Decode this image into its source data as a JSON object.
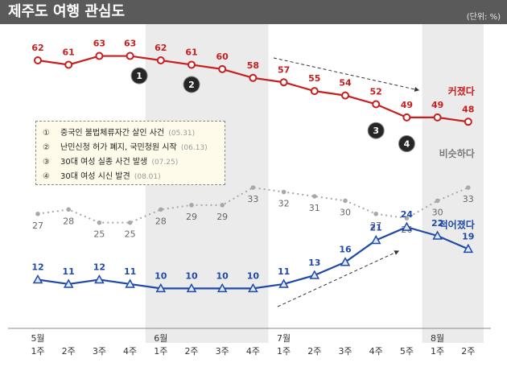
{
  "header": {
    "title": "제주도 여행 관심도",
    "unit": "(단위: %)"
  },
  "colors": {
    "red": "#c81e1e",
    "gray": "#a8a8a8",
    "blue": "#1f4aa8",
    "shade": "#ebebeb",
    "badge": "#262626"
  },
  "events": [
    {
      "num": "①",
      "text": "중국인 불법체류자간 살인 사건",
      "date": "(05.31)"
    },
    {
      "num": "②",
      "text": "난민신청 허가 폐지, 국민청원 시작",
      "date": "(06.13)"
    },
    {
      "num": "③",
      "text": "30대 여성 실종 사건 발생",
      "date": "(07.25)"
    },
    {
      "num": "④",
      "text": "30대 여성 시신 발견",
      "date": "(08.01)"
    }
  ],
  "chart_data": {
    "type": "line",
    "categories": [
      "5월 1주",
      "5월 2주",
      "5월 3주",
      "5월 4주",
      "6월 1주",
      "6월 2주",
      "6월 3주",
      "6월 4주",
      "7월 1주",
      "7월 2주",
      "7월 3주",
      "7월 4주",
      "7월 5주",
      "8월 1주",
      "8월 2주"
    ],
    "x_tick_labels": [
      "1주",
      "2주",
      "3주",
      "4주",
      "1주",
      "2주",
      "3주",
      "4주",
      "1주",
      "2주",
      "3주",
      "4주",
      "5주",
      "1주",
      "2주"
    ],
    "month_labels": [
      {
        "label": "5월",
        "index": 0
      },
      {
        "label": "6월",
        "index": 4
      },
      {
        "label": "7월",
        "index": 8
      },
      {
        "label": "8월",
        "index": 13
      }
    ],
    "series": [
      {
        "name": "커졌다",
        "color": "#c81e1e",
        "marker": "circle",
        "values": [
          62,
          61,
          63,
          63,
          62,
          61,
          60,
          58,
          57,
          55,
          54,
          52,
          49,
          49,
          48
        ]
      },
      {
        "name": "비슷하다",
        "color": "#a8a8a8",
        "marker": "dot-dotted",
        "values": [
          27,
          28,
          25,
          25,
          28,
          29,
          29,
          33,
          32,
          31,
          30,
          27,
          26,
          30,
          33
        ]
      },
      {
        "name": "적어졌다",
        "color": "#1f4aa8",
        "marker": "triangle",
        "values": [
          12,
          11,
          12,
          11,
          10,
          10,
          10,
          10,
          11,
          13,
          16,
          21,
          24,
          22,
          19
        ]
      }
    ],
    "shaded_periods": [
      [
        4,
        7
      ],
      [
        13,
        14
      ]
    ],
    "event_markers": [
      {
        "label": "1",
        "index": 3.3,
        "value": 58.5
      },
      {
        "label": "2",
        "index": 5,
        "value": 56.5
      },
      {
        "label": "3",
        "index": 11,
        "value": 46
      },
      {
        "label": "4",
        "index": 12,
        "value": 43
      }
    ]
  }
}
